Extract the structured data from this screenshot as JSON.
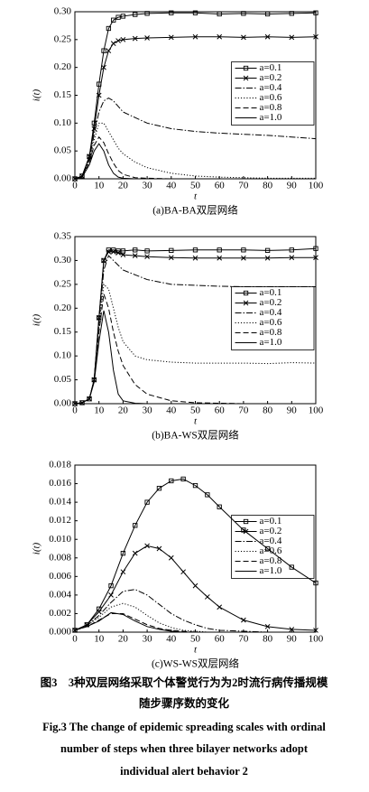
{
  "chart_data": [
    {
      "type": "line",
      "title": "(a)BA-BA双层网络",
      "x_label": "t",
      "y_label": "i(t)",
      "legend": "right",
      "x": [
        0,
        3,
        6,
        8,
        10,
        12,
        14,
        16,
        18,
        20,
        25,
        30,
        40,
        50,
        60,
        70,
        80,
        90,
        100
      ],
      "xlim": [
        0,
        100
      ],
      "xticks": [
        0,
        10,
        20,
        30,
        40,
        50,
        60,
        70,
        80,
        90,
        100
      ],
      "ylim": [
        0,
        0.3
      ],
      "yticks": [
        {
          "value": 0,
          "label": "0.00"
        },
        {
          "value": 0.05,
          "label": "0.05"
        },
        {
          "value": 0.1,
          "label": "0.10"
        },
        {
          "value": 0.15,
          "label": "0.15"
        },
        {
          "value": 0.2,
          "label": "0.20"
        },
        {
          "value": 0.25,
          "label": "0.25"
        },
        {
          "value": 0.3,
          "label": "0.30"
        }
      ],
      "series": [
        {
          "name": "a=0.1",
          "color": "#000",
          "dash": "solid",
          "marker": "square",
          "values": [
            0,
            0.005,
            0.04,
            0.1,
            0.17,
            0.23,
            0.27,
            0.285,
            0.29,
            0.292,
            0.295,
            0.297,
            0.298,
            0.298,
            0.296,
            0.297,
            0.296,
            0.297,
            0.298
          ]
        },
        {
          "name": "a=0.2",
          "color": "#000",
          "dash": "solid",
          "marker": "cross",
          "values": [
            0,
            0.005,
            0.04,
            0.09,
            0.15,
            0.2,
            0.23,
            0.243,
            0.248,
            0.25,
            0.252,
            0.253,
            0.254,
            0.255,
            0.255,
            0.254,
            0.255,
            0.254,
            0.255
          ]
        },
        {
          "name": "a=0.4",
          "color": "#000",
          "dash": "dashdot",
          "marker": "none",
          "values": [
            0,
            0.004,
            0.035,
            0.08,
            0.12,
            0.14,
            0.145,
            0.14,
            0.13,
            0.12,
            0.11,
            0.1,
            0.09,
            0.085,
            0.082,
            0.08,
            0.078,
            0.075,
            0.072
          ]
        },
        {
          "name": "a=0.6",
          "color": "#000",
          "dash": "dotted",
          "marker": "none",
          "values": [
            0,
            0.004,
            0.03,
            0.07,
            0.1,
            0.1,
            0.085,
            0.07,
            0.055,
            0.045,
            0.03,
            0.02,
            0.01,
            0.005,
            0.003,
            0.002,
            0.001,
            0.001,
            0.001
          ]
        },
        {
          "name": "a=0.8",
          "color": "#000",
          "dash": "dashed",
          "marker": "none",
          "values": [
            0,
            0.004,
            0.03,
            0.06,
            0.075,
            0.065,
            0.045,
            0.028,
            0.015,
            0.008,
            0.002,
            0.001,
            0,
            0,
            0,
            0,
            0,
            0,
            0
          ]
        },
        {
          "name": "a=1.0",
          "color": "#000",
          "dash": "solid",
          "marker": "none",
          "values": [
            0,
            0.003,
            0.025,
            0.05,
            0.063,
            0.05,
            0.025,
            0.01,
            0.003,
            0.001,
            0,
            0,
            0,
            0,
            0,
            0,
            0,
            0,
            0
          ]
        }
      ]
    },
    {
      "type": "line",
      "title": "(b)BA-WS双层网络",
      "x_label": "t",
      "y_label": "i(t)",
      "legend": "right",
      "x": [
        0,
        3,
        6,
        8,
        10,
        12,
        14,
        16,
        18,
        20,
        25,
        30,
        40,
        50,
        60,
        70,
        80,
        90,
        100
      ],
      "xlim": [
        0,
        100
      ],
      "xticks": [
        0,
        10,
        20,
        30,
        40,
        50,
        60,
        70,
        80,
        90,
        100
      ],
      "ylim": [
        0,
        0.35
      ],
      "yticks": [
        {
          "value": 0,
          "label": "0.00"
        },
        {
          "value": 0.05,
          "label": "0.05"
        },
        {
          "value": 0.1,
          "label": "0.10"
        },
        {
          "value": 0.15,
          "label": "0.15"
        },
        {
          "value": 0.2,
          "label": "0.20"
        },
        {
          "value": 0.25,
          "label": "0.25"
        },
        {
          "value": 0.3,
          "label": "0.30"
        },
        {
          "value": 0.35,
          "label": "0.35"
        }
      ],
      "series": [
        {
          "name": "a=0.1",
          "color": "#000",
          "dash": "solid",
          "marker": "square",
          "values": [
            0,
            0.002,
            0.01,
            0.05,
            0.18,
            0.3,
            0.322,
            0.322,
            0.32,
            0.32,
            0.322,
            0.32,
            0.321,
            0.322,
            0.322,
            0.322,
            0.321,
            0.322,
            0.325
          ]
        },
        {
          "name": "a=0.2",
          "color": "#000",
          "dash": "solid",
          "marker": "cross",
          "values": [
            0,
            0.002,
            0.01,
            0.05,
            0.18,
            0.3,
            0.318,
            0.318,
            0.316,
            0.312,
            0.31,
            0.308,
            0.306,
            0.305,
            0.305,
            0.305,
            0.305,
            0.306,
            0.306
          ]
        },
        {
          "name": "a=0.4",
          "color": "#000",
          "dash": "dashdot",
          "marker": "none",
          "values": [
            0,
            0.002,
            0.01,
            0.05,
            0.17,
            0.28,
            0.31,
            0.3,
            0.29,
            0.28,
            0.27,
            0.26,
            0.25,
            0.248,
            0.246,
            0.245,
            0.245,
            0.245,
            0.245
          ]
        },
        {
          "name": "a=0.6",
          "color": "#000",
          "dash": "dotted",
          "marker": "none",
          "values": [
            0,
            0.002,
            0.01,
            0.05,
            0.16,
            0.25,
            0.24,
            0.2,
            0.16,
            0.13,
            0.1,
            0.092,
            0.087,
            0.085,
            0.085,
            0.085,
            0.084,
            0.086,
            0.085
          ]
        },
        {
          "name": "a=0.8",
          "color": "#000",
          "dash": "dashed",
          "marker": "none",
          "values": [
            0,
            0.002,
            0.01,
            0.05,
            0.15,
            0.23,
            0.2,
            0.15,
            0.11,
            0.08,
            0.04,
            0.02,
            0.006,
            0.002,
            0.001,
            0,
            0,
            0,
            0
          ]
        },
        {
          "name": "a=1.0",
          "color": "#000",
          "dash": "solid",
          "marker": "none",
          "values": [
            0,
            0.002,
            0.01,
            0.045,
            0.13,
            0.195,
            0.15,
            0.07,
            0.02,
            0.006,
            0.001,
            0,
            0,
            0,
            0,
            0,
            0,
            0,
            0
          ]
        }
      ]
    },
    {
      "type": "line",
      "title": "(c)WS-WS双层网络",
      "x_label": "t",
      "y_label": "i(t)",
      "legend": "right",
      "x": [
        0,
        5,
        10,
        15,
        20,
        25,
        30,
        35,
        40,
        45,
        50,
        55,
        60,
        70,
        80,
        90,
        100
      ],
      "xlim": [
        0,
        100
      ],
      "xticks": [
        0,
        10,
        20,
        30,
        40,
        50,
        60,
        70,
        80,
        90,
        100
      ],
      "ylim": [
        0,
        0.018
      ],
      "yticks": [
        {
          "value": 0,
          "label": "0.000"
        },
        {
          "value": 0.002,
          "label": "0.002"
        },
        {
          "value": 0.004,
          "label": "0.004"
        },
        {
          "value": 0.006,
          "label": "0.006"
        },
        {
          "value": 0.008,
          "label": "0.008"
        },
        {
          "value": 0.01,
          "label": "0.010"
        },
        {
          "value": 0.012,
          "label": "0.012"
        },
        {
          "value": 0.014,
          "label": "0.014"
        },
        {
          "value": 0.016,
          "label": "0.016"
        },
        {
          "value": 0.018,
          "label": "0.018"
        }
      ],
      "series": [
        {
          "name": "a=0.1",
          "color": "#000",
          "dash": "solid",
          "marker": "square",
          "values": [
            0.0002,
            0.0008,
            0.0025,
            0.005,
            0.0085,
            0.0115,
            0.014,
            0.0155,
            0.0163,
            0.0165,
            0.0158,
            0.0148,
            0.0135,
            0.011,
            0.009,
            0.007,
            0.0053
          ]
        },
        {
          "name": "a=0.2",
          "color": "#000",
          "dash": "solid",
          "marker": "cross",
          "values": [
            0.0002,
            0.0008,
            0.0022,
            0.004,
            0.0065,
            0.0085,
            0.0093,
            0.009,
            0.008,
            0.0065,
            0.005,
            0.0038,
            0.0027,
            0.0013,
            0.0006,
            0.0003,
            0.0002
          ]
        },
        {
          "name": "a=0.4",
          "color": "#000",
          "dash": "dashdot",
          "marker": "none",
          "values": [
            0.0002,
            0.0007,
            0.0018,
            0.0032,
            0.0044,
            0.0046,
            0.004,
            0.003,
            0.002,
            0.0013,
            0.0008,
            0.0004,
            0.0002,
            0.0001,
            0,
            0,
            0
          ]
        },
        {
          "name": "a=0.6",
          "color": "#000",
          "dash": "dotted",
          "marker": "none",
          "values": [
            0.0002,
            0.0007,
            0.0016,
            0.0027,
            0.0031,
            0.0027,
            0.0018,
            0.001,
            0.0005,
            0.0002,
            0.0001,
            0,
            0,
            0,
            0,
            0,
            0
          ]
        },
        {
          "name": "a=0.8",
          "color": "#000",
          "dash": "dashed",
          "marker": "none",
          "values": [
            0.0002,
            0.0006,
            0.0013,
            0.002,
            0.002,
            0.0014,
            0.0008,
            0.0004,
            0.0002,
            0.0001,
            0,
            0,
            0,
            0,
            0,
            0,
            0
          ]
        },
        {
          "name": "a=1.0",
          "color": "#000",
          "dash": "solid",
          "marker": "none",
          "values": [
            0.0002,
            0.0006,
            0.0012,
            0.0021,
            0.0019,
            0.0012,
            0.0006,
            0.0003,
            0.0001,
            0,
            0,
            0,
            0,
            0,
            0,
            0,
            0
          ]
        }
      ]
    }
  ],
  "caption": {
    "zh_lines": [
      "图3　3种双层网络采取个体警觉行为为2时流行病传播规模",
      "随步骤序数的变化"
    ],
    "en_lines": [
      "Fig.3  The change of epidemic spreading scales with ordinal",
      "number of steps when three bilayer networks adopt",
      "individual alert behavior 2"
    ]
  }
}
